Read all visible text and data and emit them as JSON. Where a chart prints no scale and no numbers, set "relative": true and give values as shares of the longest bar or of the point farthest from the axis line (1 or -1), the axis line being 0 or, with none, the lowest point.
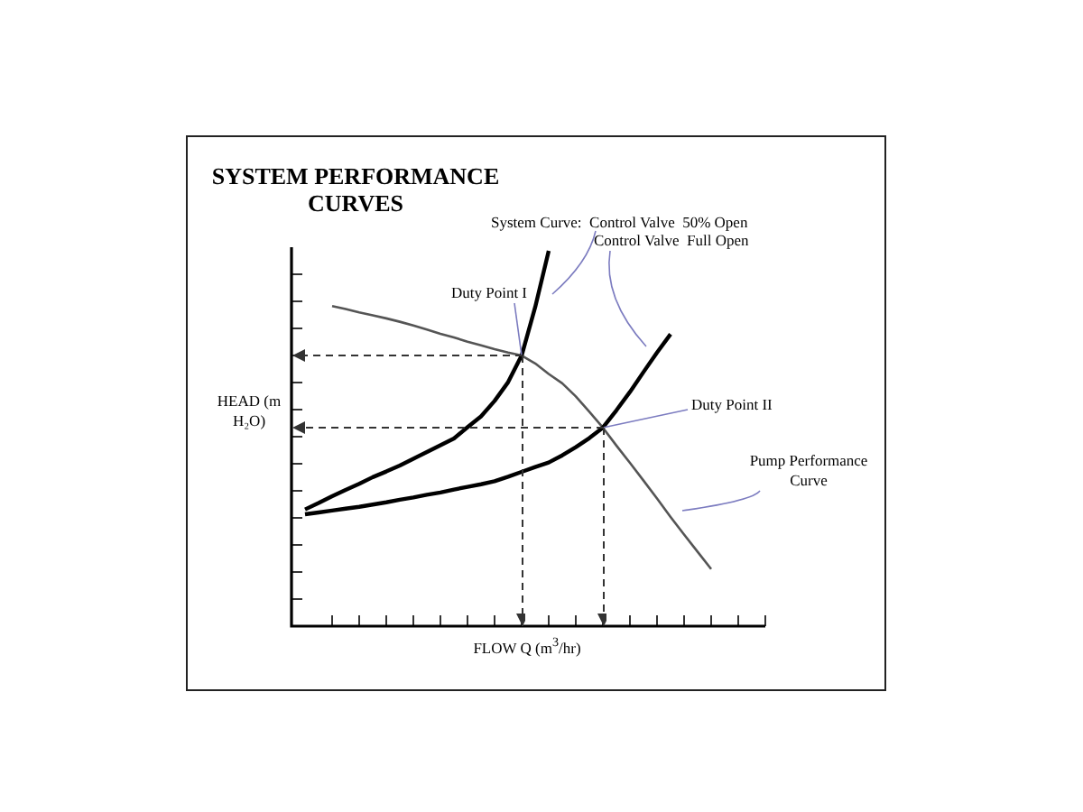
{
  "chart_data": {
    "type": "line",
    "title": "SYSTEM PERFORMANCE CURVES",
    "xlabel": "FLOW Q (m$^{3}$/hr)",
    "ylabel": "HEAD (m H₂O)",
    "relative": true,
    "legend": false,
    "tick_labels": false,
    "marker": "none",
    "categories": [
      null,
      null,
      null,
      null,
      null,
      null,
      null,
      null,
      null,
      null,
      null,
      null,
      null,
      null,
      null,
      null,
      null,
      null,
      null,
      null,
      null,
      null,
      null,
      null,
      null,
      null,
      null,
      null,
      null,
      null,
      null,
      null,
      null,
      null,
      null
    ],
    "series": [
      {
        "name": "System Curve:  Control Valve  50% Open",
        "color": "#000000",
        "values": [
          0.311,
          0.328,
          0.346,
          0.363,
          0.379,
          0.397,
          0.412,
          0.428,
          0.446,
          0.464,
          0.482,
          0.5,
          0.53,
          0.559,
          0.6,
          0.65,
          0.721,
          0.85,
          1,
          null,
          null,
          null,
          null,
          null,
          null,
          null,
          null,
          null,
          null,
          null,
          null,
          null,
          null,
          null,
          null
        ]
      },
      {
        "name": "Control Valve  Full Open",
        "color": "#000000",
        "values": [
          0.298,
          0.303,
          0.308,
          0.313,
          0.318,
          0.324,
          0.33,
          0.337,
          0.343,
          0.35,
          0.356,
          0.364,
          0.371,
          0.378,
          0.386,
          0.398,
          0.411,
          0.424,
          0.436,
          0.455,
          0.477,
          0.501,
          0.529,
          0.575,
          0.624,
          0.677,
          0.729,
          0.778,
          null,
          null,
          null,
          null,
          null,
          null,
          null
        ]
      },
      {
        "name": "Pump Performance Curve",
        "color": "#555555",
        "values": [
          null,
          null,
          0.853,
          0.845,
          0.836,
          0.828,
          0.82,
          0.811,
          0.801,
          0.79,
          0.779,
          0.769,
          0.758,
          0.748,
          0.738,
          0.729,
          0.721,
          0.7,
          0.672,
          0.647,
          0.612,
          0.571,
          0.529,
          0.481,
          0.435,
          0.388,
          0.34,
          0.291,
          0.244,
          0.198,
          0.152,
          null,
          null,
          null,
          null
        ]
      }
    ],
    "annotations": [
      "Duty Point I",
      "Duty Point II"
    ]
  }
}
